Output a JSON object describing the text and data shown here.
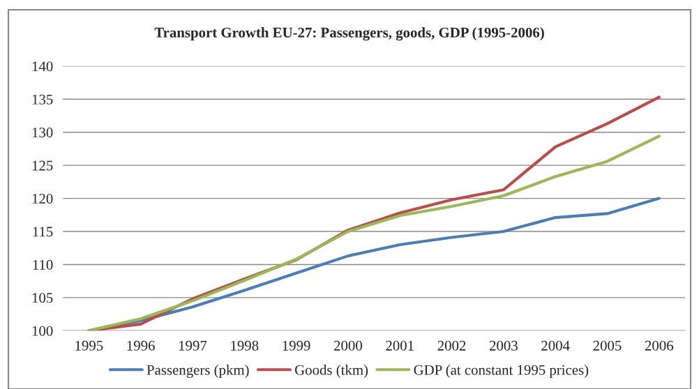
{
  "chart_data": {
    "type": "line",
    "title": "Transport Growth EU-27: Passengers, goods, GDP (1995-2006)",
    "categories": [
      "1995",
      "1996",
      "1997",
      "1998",
      "1999",
      "2000",
      "2001",
      "2002",
      "2003",
      "2004",
      "2005",
      "2006"
    ],
    "series": [
      {
        "name": "Passengers (pkm)",
        "color": "#4a7ebb",
        "values": [
          100,
          101.5,
          103.6,
          106.1,
          108.7,
          111.3,
          113.0,
          114.1,
          115.0,
          117.1,
          117.7,
          120.0
        ]
      },
      {
        "name": "Goods (tkm)",
        "color": "#be4b48",
        "values": [
          100,
          101.0,
          104.8,
          107.8,
          110.7,
          115.2,
          117.8,
          119.8,
          121.3,
          127.8,
          131.3,
          135.3
        ]
      },
      {
        "name": "GDP (at constant 1995 prices)",
        "color": "#98b954",
        "values": [
          100,
          101.8,
          104.5,
          107.6,
          110.8,
          115.0,
          117.4,
          118.8,
          120.4,
          123.3,
          125.6,
          129.4
        ]
      }
    ],
    "ylim": [
      100,
      140
    ],
    "yticks": [
      100,
      105,
      110,
      115,
      120,
      125,
      130,
      135,
      140
    ],
    "grid": "y",
    "legend": "bottom",
    "marker": "none",
    "line_style": "solid"
  }
}
